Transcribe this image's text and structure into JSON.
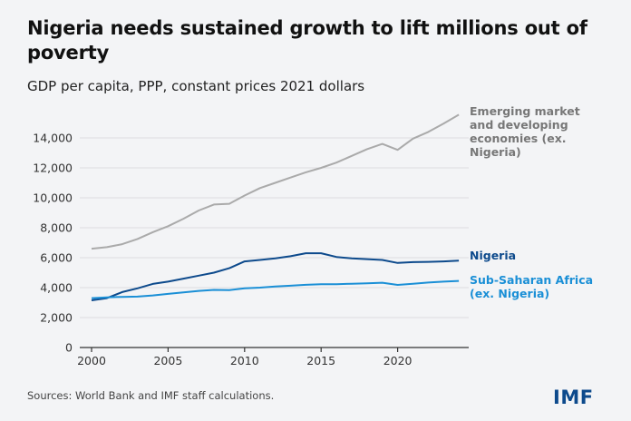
{
  "header": {
    "title": "Nigeria needs sustained growth to lift millions out of poverty",
    "subtitle": "GDP per capita, PPP, constant prices 2021 dollars"
  },
  "footer": {
    "source": "Sources: World Bank and IMF staff calculations.",
    "logo": "IMF"
  },
  "chart_data": {
    "type": "line",
    "title": "Nigeria needs sustained growth to lift millions out of poverty",
    "subtitle": "GDP per capita, PPP, constant prices 2021 dollars",
    "xlabel": "",
    "ylabel": "",
    "x": [
      2000,
      2001,
      2002,
      2003,
      2004,
      2005,
      2006,
      2007,
      2008,
      2009,
      2010,
      2011,
      2012,
      2013,
      2014,
      2015,
      2016,
      2017,
      2018,
      2019,
      2020,
      2021,
      2022,
      2023,
      2024
    ],
    "xticks": [
      2000,
      2005,
      2010,
      2015,
      2020
    ],
    "xtick_labels": [
      "2000",
      "2005",
      "2010",
      "2015",
      "2020"
    ],
    "xlim": [
      2000,
      2024.6
    ],
    "ylim": [
      0,
      14000
    ],
    "yticks": [
      0,
      2000,
      4000,
      6000,
      8000,
      10000,
      12000,
      14000
    ],
    "ytick_labels": [
      "0",
      "2,000",
      "4,000",
      "6,000",
      "8,000",
      "10,000",
      "12,000",
      "14,000"
    ],
    "grid": true,
    "legend": "direct labels at right end of lines",
    "series": [
      {
        "name": "Emerging market and developing economies (ex. Nigeria)",
        "label_lines": [
          "Emerging market",
          "and developing",
          "economies (ex.",
          "Nigeria)"
        ],
        "color": "#aaaaaa",
        "values": [
          6600,
          6700,
          6900,
          7250,
          7700,
          8100,
          8600,
          9150,
          9550,
          9600,
          10150,
          10650,
          11000,
          11350,
          11700,
          12000,
          12350,
          12800,
          13250,
          13600,
          13200,
          13950,
          14400,
          14950,
          15550
        ]
      },
      {
        "name": "Nigeria",
        "label_lines": [
          "Nigeria"
        ],
        "color": "#0d4a8c",
        "values": [
          3150,
          3300,
          3700,
          3950,
          4250,
          4400,
          4600,
          4800,
          5000,
          5300,
          5750,
          5850,
          5950,
          6100,
          6300,
          6300,
          6050,
          5950,
          5900,
          5850,
          5650,
          5700,
          5720,
          5750,
          5800
        ]
      },
      {
        "name": "Sub-Saharan Africa (ex. Nigeria)",
        "label_lines": [
          "Sub-Saharan Africa",
          "(ex. Nigeria)"
        ],
        "color": "#1a8fd6",
        "values": [
          3300,
          3350,
          3380,
          3400,
          3480,
          3580,
          3680,
          3780,
          3850,
          3830,
          3950,
          4000,
          4070,
          4130,
          4190,
          4230,
          4230,
          4260,
          4290,
          4330,
          4180,
          4260,
          4340,
          4400,
          4450
        ]
      }
    ]
  }
}
